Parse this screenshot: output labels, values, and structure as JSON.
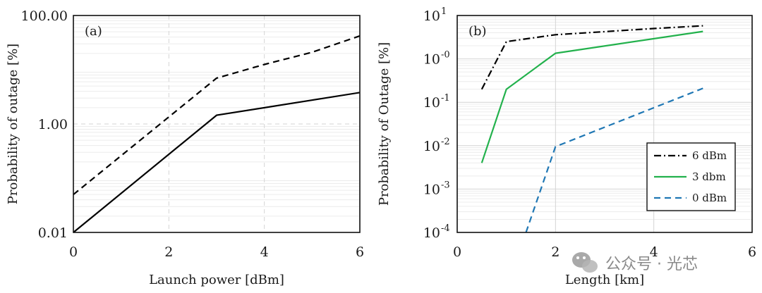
{
  "chart_data": [
    {
      "type": "line",
      "panel": "(a)",
      "xlabel": "Launch power [dBm]",
      "ylabel": "Probability of outage [%]",
      "xlim": [
        0,
        6
      ],
      "ylim": [
        0.01,
        100
      ],
      "yscale": "log",
      "grid": true,
      "x_ticks": [
        0,
        2,
        4,
        6
      ],
      "x_tick_labels": [
        "0",
        "2",
        "4",
        "6"
      ],
      "y_ticks": [
        0.01,
        1,
        100
      ],
      "y_tick_labels": [
        "0.01",
        "1.00",
        "100.00"
      ],
      "series": [
        {
          "style": "dashed",
          "color": "#000000",
          "x": [
            0,
            3,
            4,
            5,
            6
          ],
          "y": [
            0.05,
            7.0,
            12.5,
            21,
            42
          ]
        },
        {
          "style": "solid",
          "color": "#000000",
          "x": [
            0,
            3,
            6
          ],
          "y": [
            0.01,
            1.45,
            3.8
          ]
        }
      ]
    },
    {
      "type": "line",
      "panel": "(b)",
      "xlabel": "Length [km]",
      "ylabel": "Probability of Outage [%]",
      "xlim": [
        0,
        6
      ],
      "ylim": [
        0.0001,
        10
      ],
      "yscale": "log",
      "grid": true,
      "legend_position": "bottom-right",
      "x_ticks": [
        0,
        2,
        4,
        6
      ],
      "x_tick_labels": [
        "0",
        "2",
        "4",
        "6"
      ],
      "y_ticks": [
        0.0001,
        0.001,
        0.01,
        0.1,
        1,
        10
      ],
      "y_tick_labels": [
        {
          "base": "10",
          "exp": "-4"
        },
        {
          "base": "10",
          "exp": "-3"
        },
        {
          "base": "10",
          "exp": "-2"
        },
        {
          "base": "10",
          "exp": "-1"
        },
        {
          "base": "10",
          "exp": "-0"
        },
        {
          "base": "10",
          "exp": "1"
        }
      ],
      "series": [
        {
          "name": "6 dBm",
          "style": "dashdot",
          "color": "#000000",
          "x": [
            0.5,
            1,
            2,
            4,
            5
          ],
          "y": [
            0.2,
            2.5,
            3.6,
            5.0,
            5.8
          ]
        },
        {
          "name": "3 dbm",
          "style": "solid",
          "color": "#22b14c",
          "x": [
            0.5,
            1,
            2,
            5
          ],
          "y": [
            0.004,
            0.2,
            1.35,
            4.3
          ]
        },
        {
          "name": "0 dBm",
          "style": "dashed",
          "color": "#1f77b4",
          "x": [
            1.4,
            2,
            5
          ],
          "y": [
            0.0001,
            0.0095,
            0.21
          ]
        }
      ]
    }
  ],
  "watermark": {
    "text": "公众号 · 光芯",
    "icon": "wechat-icon"
  }
}
